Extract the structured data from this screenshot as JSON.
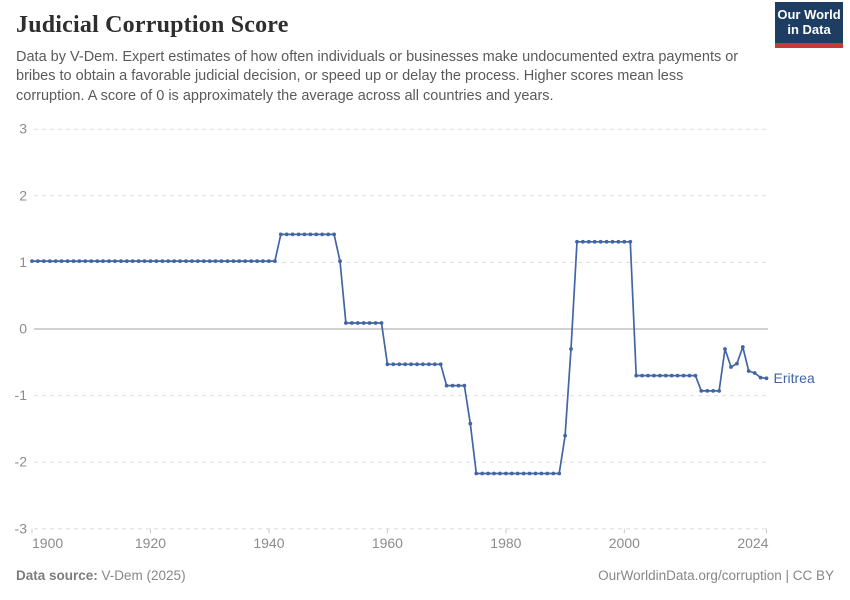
{
  "header": {
    "title": "Judicial Corruption Score",
    "subtitle": "Data by V-Dem. Expert estimates of how often individuals or businesses make undocumented extra payments or bribes to obtain a favorable judicial decision, or speed up or delay the process. Higher scores mean less corruption. A score of 0 is approximately the average across all countries and years.",
    "logo": {
      "line1": "Our World",
      "line2": "in Data",
      "bg_color": "#1d3d63",
      "accent_color": "#c53a38"
    }
  },
  "chart_data": {
    "type": "line",
    "title": "Judicial Corruption Score",
    "xlabel": "",
    "ylabel": "",
    "xlim": [
      1900,
      2024
    ],
    "ylim": [
      -3,
      3
    ],
    "xticks": [
      1900,
      1920,
      1940,
      1960,
      1980,
      2000,
      2024
    ],
    "yticks": [
      3,
      2,
      1,
      0,
      -1,
      -2,
      -3
    ],
    "grid": "horizontal-dashed",
    "zero_line": true,
    "legend_position": "end-of-line-label",
    "line_color": "#4165a5",
    "marker": "dot-every-year",
    "series": [
      {
        "name": "Eritrea",
        "points": [
          [
            1900,
            1.02
          ],
          [
            1901,
            1.02
          ],
          [
            1902,
            1.02
          ],
          [
            1903,
            1.02
          ],
          [
            1904,
            1.02
          ],
          [
            1905,
            1.02
          ],
          [
            1906,
            1.02
          ],
          [
            1907,
            1.02
          ],
          [
            1908,
            1.02
          ],
          [
            1909,
            1.02
          ],
          [
            1910,
            1.02
          ],
          [
            1911,
            1.02
          ],
          [
            1912,
            1.02
          ],
          [
            1913,
            1.02
          ],
          [
            1914,
            1.02
          ],
          [
            1915,
            1.02
          ],
          [
            1916,
            1.02
          ],
          [
            1917,
            1.02
          ],
          [
            1918,
            1.02
          ],
          [
            1919,
            1.02
          ],
          [
            1920,
            1.02
          ],
          [
            1921,
            1.02
          ],
          [
            1922,
            1.02
          ],
          [
            1923,
            1.02
          ],
          [
            1924,
            1.02
          ],
          [
            1925,
            1.02
          ],
          [
            1926,
            1.02
          ],
          [
            1927,
            1.02
          ],
          [
            1928,
            1.02
          ],
          [
            1929,
            1.02
          ],
          [
            1930,
            1.02
          ],
          [
            1931,
            1.02
          ],
          [
            1932,
            1.02
          ],
          [
            1933,
            1.02
          ],
          [
            1934,
            1.02
          ],
          [
            1935,
            1.02
          ],
          [
            1936,
            1.02
          ],
          [
            1937,
            1.02
          ],
          [
            1938,
            1.02
          ],
          [
            1939,
            1.02
          ],
          [
            1940,
            1.02
          ],
          [
            1941,
            1.02
          ],
          [
            1942,
            1.42
          ],
          [
            1943,
            1.42
          ],
          [
            1944,
            1.42
          ],
          [
            1945,
            1.42
          ],
          [
            1946,
            1.42
          ],
          [
            1947,
            1.42
          ],
          [
            1948,
            1.42
          ],
          [
            1949,
            1.42
          ],
          [
            1950,
            1.42
          ],
          [
            1951,
            1.42
          ],
          [
            1952,
            1.02
          ],
          [
            1953,
            0.09
          ],
          [
            1954,
            0.09
          ],
          [
            1955,
            0.09
          ],
          [
            1956,
            0.09
          ],
          [
            1957,
            0.09
          ],
          [
            1958,
            0.09
          ],
          [
            1959,
            0.09
          ],
          [
            1960,
            -0.53
          ],
          [
            1961,
            -0.53
          ],
          [
            1962,
            -0.53
          ],
          [
            1963,
            -0.53
          ],
          [
            1964,
            -0.53
          ],
          [
            1965,
            -0.53
          ],
          [
            1966,
            -0.53
          ],
          [
            1967,
            -0.53
          ],
          [
            1968,
            -0.53
          ],
          [
            1969,
            -0.53
          ],
          [
            1970,
            -0.85
          ],
          [
            1971,
            -0.85
          ],
          [
            1972,
            -0.85
          ],
          [
            1973,
            -0.85
          ],
          [
            1974,
            -1.42
          ],
          [
            1975,
            -2.17
          ],
          [
            1976,
            -2.17
          ],
          [
            1977,
            -2.17
          ],
          [
            1978,
            -2.17
          ],
          [
            1979,
            -2.17
          ],
          [
            1980,
            -2.17
          ],
          [
            1981,
            -2.17
          ],
          [
            1982,
            -2.17
          ],
          [
            1983,
            -2.17
          ],
          [
            1984,
            -2.17
          ],
          [
            1985,
            -2.17
          ],
          [
            1986,
            -2.17
          ],
          [
            1987,
            -2.17
          ],
          [
            1988,
            -2.17
          ],
          [
            1989,
            -2.17
          ],
          [
            1990,
            -1.6
          ],
          [
            1991,
            -0.3
          ],
          [
            1992,
            1.31
          ],
          [
            1993,
            1.31
          ],
          [
            1994,
            1.31
          ],
          [
            1995,
            1.31
          ],
          [
            1996,
            1.31
          ],
          [
            1997,
            1.31
          ],
          [
            1998,
            1.31
          ],
          [
            1999,
            1.31
          ],
          [
            2000,
            1.31
          ],
          [
            2001,
            1.31
          ],
          [
            2002,
            -0.7
          ],
          [
            2003,
            -0.7
          ],
          [
            2004,
            -0.7
          ],
          [
            2005,
            -0.7
          ],
          [
            2006,
            -0.7
          ],
          [
            2007,
            -0.7
          ],
          [
            2008,
            -0.7
          ],
          [
            2009,
            -0.7
          ],
          [
            2010,
            -0.7
          ],
          [
            2011,
            -0.7
          ],
          [
            2012,
            -0.7
          ],
          [
            2013,
            -0.93
          ],
          [
            2014,
            -0.93
          ],
          [
            2015,
            -0.93
          ],
          [
            2016,
            -0.93
          ],
          [
            2017,
            -0.3
          ],
          [
            2018,
            -0.57
          ],
          [
            2019,
            -0.52
          ],
          [
            2020,
            -0.27
          ],
          [
            2021,
            -0.63
          ],
          [
            2022,
            -0.66
          ],
          [
            2023,
            -0.73
          ],
          [
            2024,
            -0.74
          ]
        ]
      }
    ]
  },
  "footer": {
    "source_label": "Data source:",
    "source_value": " V-Dem (2025)",
    "link_text": "OurWorldinData.org/corruption | CC BY"
  }
}
